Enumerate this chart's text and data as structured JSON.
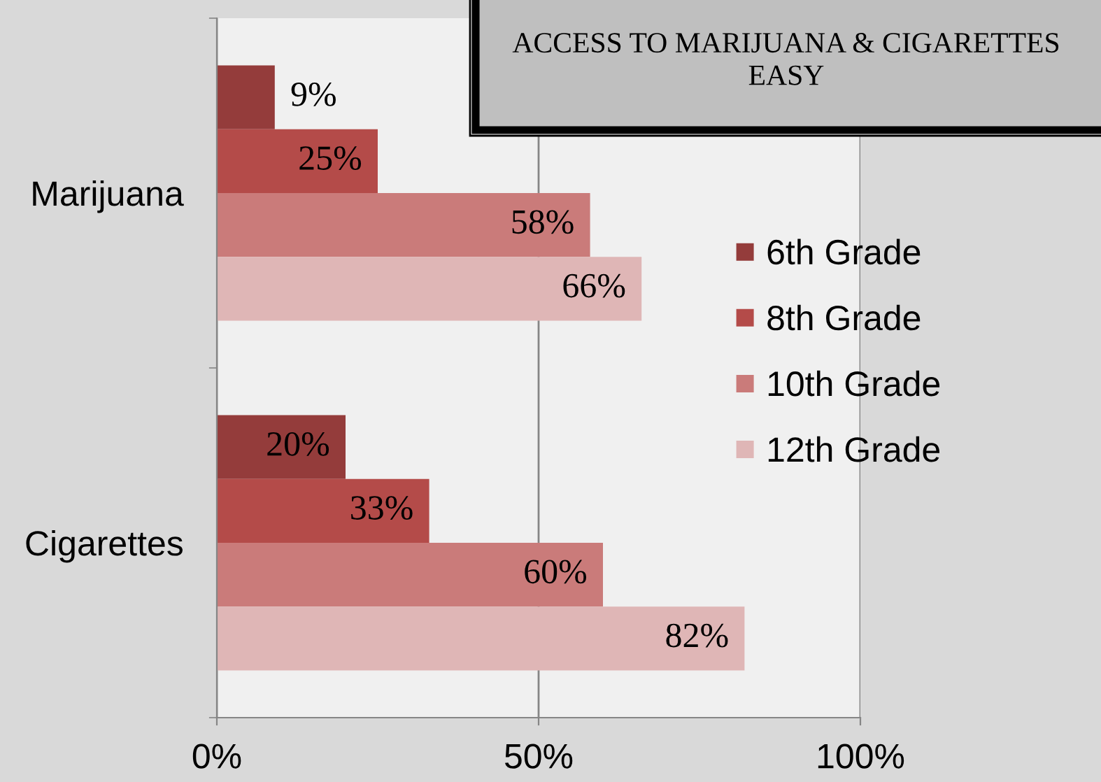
{
  "chart_data": {
    "type": "bar",
    "orientation": "horizontal",
    "title": "ACCESS TO MARIJUANA & CIGARETTES\nEASY",
    "categories": [
      "Marijuana",
      "Cigarettes"
    ],
    "series": [
      {
        "name": "6th Grade",
        "color": "#943c3b",
        "values": [
          9,
          20
        ],
        "value_labels": [
          "9%",
          "20%"
        ]
      },
      {
        "name": "8th Grade",
        "color": "#b44b49",
        "values": [
          25,
          33
        ],
        "value_labels": [
          "25%",
          "33%"
        ]
      },
      {
        "name": "10th Grade",
        "color": "#ca7b7a",
        "values": [
          58,
          60
        ],
        "value_labels": [
          "58%",
          "60%"
        ]
      },
      {
        "name": "12th Grade",
        "color": "#dfb6b6",
        "values": [
          66,
          82
        ],
        "value_labels": [
          "66%",
          "82%"
        ]
      }
    ],
    "xlim": [
      0,
      100
    ],
    "xticks": [
      {
        "value": 0,
        "label": "0%"
      },
      {
        "value": 50,
        "label": "50%"
      },
      {
        "value": 100,
        "label": "100%"
      }
    ],
    "grid": "x",
    "legend": "right"
  }
}
